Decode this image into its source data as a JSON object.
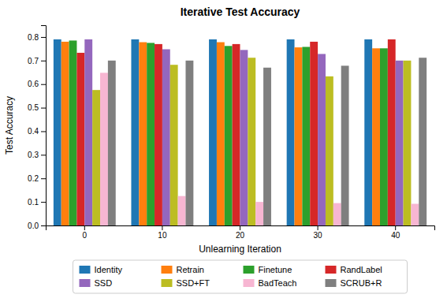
{
  "chart_data": {
    "type": "bar",
    "title": "Iterative Test Accuracy",
    "x_label": "Unlearning Iteration",
    "y_label": "Test Accuracy",
    "categories": [
      "0",
      "10",
      "20",
      "30",
      "40"
    ],
    "series": [
      {
        "name": "Identity",
        "color": "#1f77b4",
        "values": [
          0.79,
          0.79,
          0.79,
          0.79,
          0.79
        ]
      },
      {
        "name": "Retrain",
        "color": "#ff7f0e",
        "values": [
          0.78,
          0.778,
          0.778,
          0.756,
          0.752
        ]
      },
      {
        "name": "Finetune",
        "color": "#2ca02c",
        "values": [
          0.785,
          0.775,
          0.762,
          0.758,
          0.752
        ]
      },
      {
        "name": "RandLabel",
        "color": "#d62728",
        "values": [
          0.733,
          0.77,
          0.77,
          0.78,
          0.79
        ]
      },
      {
        "name": "SSD",
        "color": "#9467bd",
        "values": [
          0.79,
          0.748,
          0.745,
          0.728,
          0.7
        ]
      },
      {
        "name": "SSD+FT",
        "color": "#bcbd22",
        "values": [
          0.575,
          0.682,
          0.712,
          0.633,
          0.7
        ]
      },
      {
        "name": "BadTeach",
        "color": "#f7b6d2",
        "values": [
          0.648,
          0.125,
          0.1,
          0.095,
          0.092
        ]
      },
      {
        "name": "SCRUB+R",
        "color": "#7f7f7f",
        "values": [
          0.7,
          0.7,
          0.67,
          0.678,
          0.712
        ]
      }
    ],
    "ylim": [
      0.0,
      0.85
    ],
    "yticks": [
      {
        "value": 0,
        "label": "0.0"
      },
      0.1,
      0.2,
      0.3,
      0.4,
      0.5,
      0.6,
      0.7,
      0.8
    ],
    "grid": false,
    "legend": "bottom"
  }
}
